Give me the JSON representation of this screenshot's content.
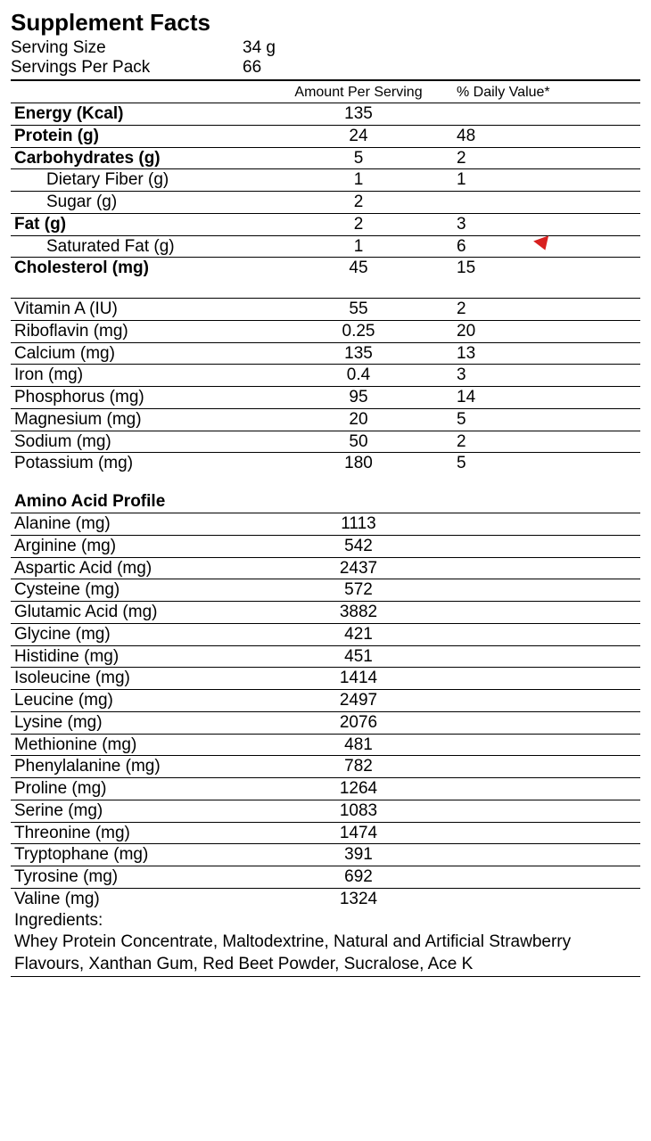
{
  "title": "Supplement Facts",
  "serving": {
    "size_label": "Serving Size",
    "size_value": "34 g",
    "per_pack_label": "Servings Per Pack",
    "per_pack_value": "66"
  },
  "headers": {
    "amount": "Amount Per Serving",
    "dv": "% Daily Value*"
  },
  "main_nutrients": [
    {
      "name": "Energy (Kcal)",
      "amount": "135",
      "dv": "",
      "bold": true,
      "indent": false
    },
    {
      "name": "Protein (g)",
      "amount": "24",
      "dv": "48",
      "bold": true,
      "indent": false
    },
    {
      "name": "Carbohydrates (g)",
      "amount": "5",
      "dv": "2",
      "bold": true,
      "indent": false
    },
    {
      "name": "Dietary Fiber (g)",
      "amount": "1",
      "dv": "1",
      "bold": false,
      "indent": true
    },
    {
      "name": "Sugar (g)",
      "amount": "2",
      "dv": "",
      "bold": false,
      "indent": true
    },
    {
      "name": "Fat (g)",
      "amount": "2",
      "dv": "3",
      "bold": true,
      "indent": false
    },
    {
      "name": "Saturated Fat (g)",
      "amount": "1",
      "dv": "6",
      "bold": false,
      "indent": true,
      "cursor": true
    },
    {
      "name": "Cholesterol (mg)",
      "amount": "45",
      "dv": "15",
      "bold": true,
      "indent": false
    }
  ],
  "vitamins": [
    {
      "name": "Vitamin A (IU)",
      "amount": "55",
      "dv": "2"
    },
    {
      "name": "Riboflavin (mg)",
      "amount": "0.25",
      "dv": "20"
    },
    {
      "name": "Calcium (mg)",
      "amount": "135",
      "dv": "13"
    },
    {
      "name": "Iron (mg)",
      "amount": "0.4",
      "dv": "3"
    },
    {
      "name": "Phosphorus (mg)",
      "amount": "95",
      "dv": "14"
    },
    {
      "name": "Magnesium (mg)",
      "amount": "20",
      "dv": "5"
    },
    {
      "name": "Sodium (mg)",
      "amount": "50",
      "dv": "2"
    },
    {
      "name": "Potassium (mg)",
      "amount": "180",
      "dv": "5"
    }
  ],
  "amino_header": "Amino Acid Profile",
  "aminos": [
    {
      "name": "Alanine (mg)",
      "amount": "1113"
    },
    {
      "name": "Arginine (mg)",
      "amount": "542"
    },
    {
      "name": "Aspartic Acid  (mg)",
      "amount": "2437"
    },
    {
      "name": "Cysteine  (mg)",
      "amount": "572"
    },
    {
      "name": "Glutamic Acid  (mg)",
      "amount": "3882"
    },
    {
      "name": "Glycine  (mg)",
      "amount": "421"
    },
    {
      "name": "Histidine  (mg)",
      "amount": "451"
    },
    {
      "name": "Isoleucine  (mg)",
      "amount": "1414"
    },
    {
      "name": "Leucine  (mg)",
      "amount": "2497"
    },
    {
      "name": "Lysine  (mg)",
      "amount": "2076"
    },
    {
      "name": "Methionine  (mg)",
      "amount": "481"
    },
    {
      "name": "Phenylalanine (mg)",
      "amount": "782"
    },
    {
      "name": "Proline  (mg)",
      "amount": "1264"
    },
    {
      "name": "Serine  (mg)",
      "amount": "1083"
    },
    {
      "name": "Threonine  (mg)",
      "amount": "1474"
    },
    {
      "name": "Tryptophane  (mg)",
      "amount": "391"
    },
    {
      "name": "Tyrosine  (mg)",
      "amount": "692"
    },
    {
      "name": "Valine  (mg)",
      "amount": "1324"
    }
  ],
  "ingredients": {
    "label": "Ingredients:",
    "text": "Whey Protein Concentrate, Maltodextrine, Natural and Artificial Strawberry Flavours, Xanthan Gum, Red Beet Powder, Sucralose, Ace K"
  }
}
